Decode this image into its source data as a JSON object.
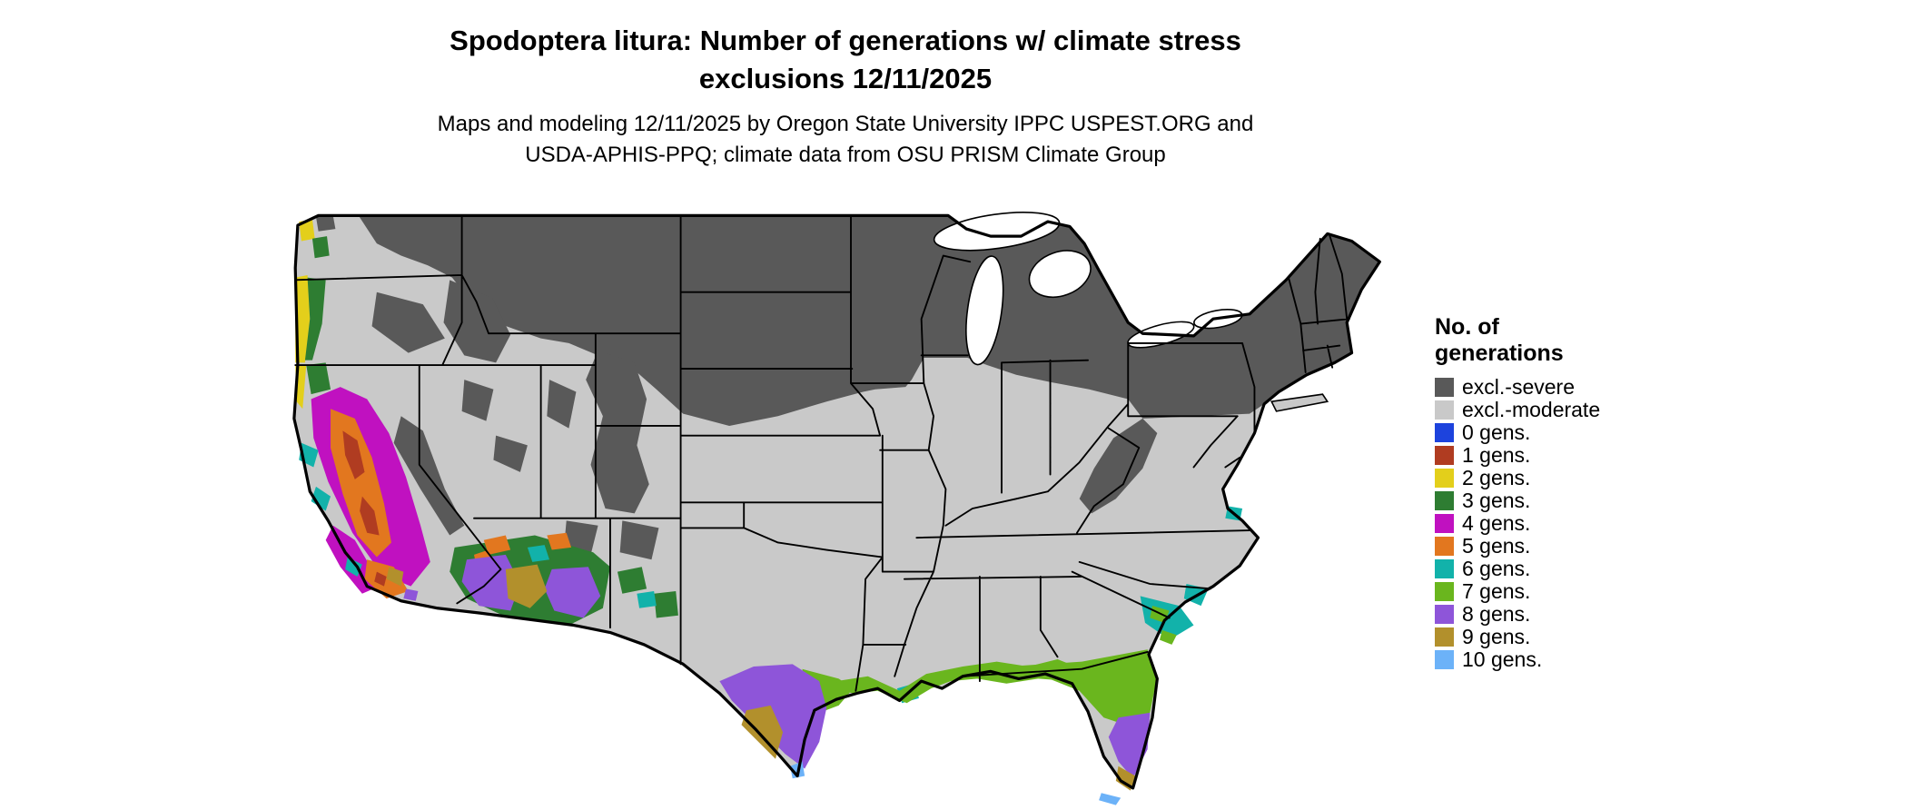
{
  "page": {
    "background": "#ffffff"
  },
  "title": {
    "line1": "Spodoptera litura: Number of generations w/ climate stress",
    "line2": "exclusions 12/11/2025"
  },
  "subtitle": {
    "line1": "Maps and modeling 12/11/2025 by Oregon State University IPPC USPEST.ORG and",
    "line2": "USDA-APHIS-PPQ; climate data from OSU PRISM Climate Group"
  },
  "legend": {
    "title_line1": "No. of",
    "title_line2": "generations",
    "items": [
      {
        "key": "excl-severe",
        "label": "excl.-severe",
        "color": "#595959"
      },
      {
        "key": "excl-moderate",
        "label": "excl.-moderate",
        "color": "#c9c9c9"
      },
      {
        "key": "gens-0",
        "label": "0 gens.",
        "color": "#1d43dd"
      },
      {
        "key": "gens-1",
        "label": "1 gens.",
        "color": "#b03c21"
      },
      {
        "key": "gens-2",
        "label": "2 gens.",
        "color": "#e3cf1b"
      },
      {
        "key": "gens-3",
        "label": "3 gens.",
        "color": "#2e7d32"
      },
      {
        "key": "gens-4",
        "label": "4 gens.",
        "color": "#c011c0"
      },
      {
        "key": "gens-5",
        "label": "5 gens.",
        "color": "#e2771f"
      },
      {
        "key": "gens-6",
        "label": "6 gens.",
        "color": "#12b2aa"
      },
      {
        "key": "gens-7",
        "label": "7 gens.",
        "color": "#6ab61e"
      },
      {
        "key": "gens-8",
        "label": "8 gens.",
        "color": "#8e55d9"
      },
      {
        "key": "gens-9",
        "label": "9 gens.",
        "color": "#b2902c"
      },
      {
        "key": "gens-10",
        "label": "10 gens.",
        "color": "#6cb2f8"
      }
    ]
  },
  "map": {
    "geography": "Contiguous United States with state borders",
    "border_color": "#000000",
    "water_color": "#ffffff"
  },
  "chart_data": {
    "type": "heatmap",
    "subtype": "categorical choropleth/raster map of contiguous United States",
    "title": "Spodoptera litura: Number of generations w/ climate stress exclusions 12/11/2025",
    "legend_title": "No. of generations",
    "legend_position": "right",
    "categories": [
      "excl.-severe",
      "excl.-moderate",
      "0 gens.",
      "1 gens.",
      "2 gens.",
      "3 gens.",
      "4 gens.",
      "5 gens.",
      "6 gens.",
      "7 gens.",
      "8 gens.",
      "9 gens.",
      "10 gens."
    ],
    "colors": [
      "#595959",
      "#c9c9c9",
      "#1d43dd",
      "#b03c21",
      "#e3cf1b",
      "#2e7d32",
      "#c011c0",
      "#e2771f",
      "#12b2aa",
      "#6ab61e",
      "#8e55d9",
      "#b2902c",
      "#6cb2f8"
    ],
    "region_pattern": {
      "excl.-severe": "dark gray across northern US: interior Pacific Northwest, northern Rockies, Montana, Dakotas, upper Midwest, Great Lakes states, Northeast, Appalachians, Sierra Nevada and high-elevation West",
      "excl.-moderate": "light gray central band: central/southern plains, Midwest, mid-South, most of Texas, interior Southeast, mid-Atlantic coastal plain",
      "2-3 gens.": "yellow and green strips along Washington/Oregon/northern California coast and valleys",
      "1,4,5 gens.": "California Central Valley orange/red core ringed by magenta coast ranges and southern California coast",
      "4-9 gens.": "mixed green/purple/brown/teal/orange mosaic over southern Arizona and southwest New Mexico",
      "6 gens.": "teal patches along coastal Georgia/South Carolina and small Virginia coast spots",
      "7 gens.": "yellow-green band along Gulf Coast from Texas through Louisiana to panhandle and north Florida",
      "8 gens.": "violet over south-central Texas and central Florida",
      "9 gens.": "olive-brown along far south Texas Rio Grande and southern tip of Florida",
      "10 gens.": "light blue specks at extreme south Texas tip and Florida Keys"
    }
  }
}
